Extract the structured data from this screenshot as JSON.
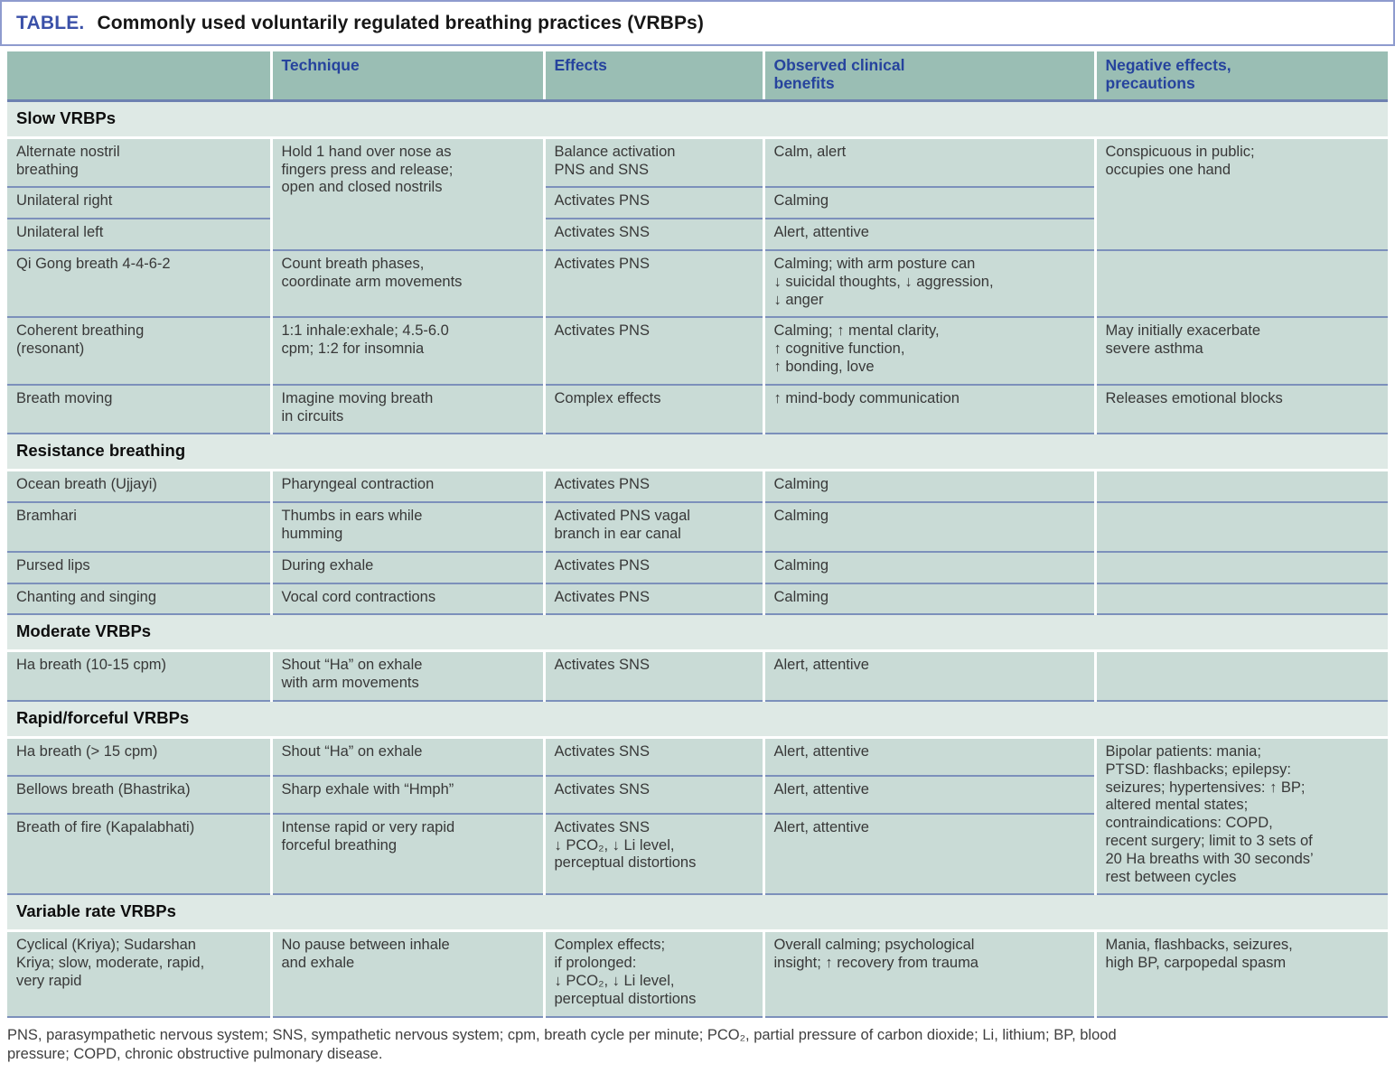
{
  "title": {
    "label": "TABLE.",
    "text": "Commonly used voluntarily regulated breathing practices (VRBPs)"
  },
  "columns": {
    "technique": "Technique",
    "effects": "Effects",
    "benefits": "Observed clinical\nbenefits",
    "negative": "Negative effects,\nprecautions"
  },
  "sections": [
    {
      "header": "Slow VRBPs",
      "rows": [
        {
          "name": "Alternate nostril\nbreathing",
          "technique": "Hold 1 hand over nose as\nfingers press and release;\nopen and closed nostrils",
          "effects": "Balance activation\nPNS and SNS",
          "benefits": "Calm, alert",
          "negative": "Conspicuous in public;\noccupies one hand"
        },
        {
          "name": "Unilateral right",
          "effects": "Activates PNS",
          "benefits": "Calming"
        },
        {
          "name": "Unilateral left",
          "effects": "Activates SNS",
          "benefits": "Alert, attentive"
        },
        {
          "name": "Qi Gong breath 4-4-6-2",
          "technique": "Count breath phases,\ncoordinate arm movements",
          "effects": "Activates PNS",
          "benefits": "Calming; with arm posture can\n↓ suicidal thoughts, ↓ aggression,\n↓ anger",
          "negative": ""
        },
        {
          "name": "Coherent breathing\n(resonant)",
          "technique": "1:1 inhale:exhale; 4.5-6.0\ncpm; 1:2 for insomnia",
          "effects": "Activates PNS",
          "benefits": "Calming; ↑ mental clarity,\n↑ cognitive function,\n↑ bonding, love",
          "negative": "May initially exacerbate\nsevere asthma"
        },
        {
          "name": "Breath moving",
          "technique": "Imagine moving breath\nin circuits",
          "effects": "Complex effects",
          "benefits": "↑ mind-body communication",
          "negative": "Releases emotional blocks"
        }
      ]
    },
    {
      "header": "Resistance breathing",
      "rows": [
        {
          "name": "Ocean breath (Ujjayi)",
          "technique": "Pharyngeal contraction",
          "effects": "Activates PNS",
          "benefits": "Calming",
          "negative": ""
        },
        {
          "name": "Bramhari",
          "technique": "Thumbs in ears while\nhumming",
          "effects": "Activated PNS vagal\nbranch in ear canal",
          "benefits": "Calming",
          "negative": ""
        },
        {
          "name": "Pursed lips",
          "technique": "During exhale",
          "effects": "Activates PNS",
          "benefits": "Calming",
          "negative": ""
        },
        {
          "name": "Chanting and singing",
          "technique": "Vocal cord contractions",
          "effects": "Activates PNS",
          "benefits": "Calming",
          "negative": ""
        }
      ]
    },
    {
      "header": "Moderate VRBPs",
      "rows": [
        {
          "name": "Ha breath (10-15 cpm)",
          "technique": "Shout “Ha” on exhale\nwith arm movements",
          "effects": "Activates SNS",
          "benefits": "Alert, attentive",
          "negative": ""
        }
      ]
    },
    {
      "header": "Rapid/forceful VRBPs",
      "rows": [
        {
          "name": "Ha breath (> 15 cpm)",
          "technique": "Shout “Ha” on exhale",
          "effects": "Activates SNS",
          "benefits": "Alert, attentive",
          "negative": "Bipolar patients: mania;\nPTSD: flashbacks; epilepsy:\nseizures; hypertensives: ↑ BP;\naltered mental states;\ncontraindications: COPD,\nrecent surgery; limit to 3 sets of\n20 Ha breaths with 30 seconds’\nrest between cycles"
        },
        {
          "name": "Bellows breath (Bhastrika)",
          "technique": "Sharp exhale with “Hmph”",
          "effects": "Activates SNS",
          "benefits": "Alert, attentive"
        },
        {
          "name": "Breath of fire (Kapalabhati)",
          "technique": "Intense rapid or very rapid\nforceful breathing",
          "effects": "Activates SNS\n↓ PCO₂, ↓ Li level,\nperceptual distortions",
          "benefits": "Alert, attentive"
        }
      ]
    },
    {
      "header": "Variable rate VRBPs",
      "rows": [
        {
          "name": "Cyclical (Kriya); Sudarshan\nKriya; slow, moderate, rapid,\nvery rapid",
          "technique": "No pause between inhale\nand exhale",
          "effects": "Complex effects;\nif prolonged:\n↓ PCO₂, ↓ Li level,\nperceptual distortions",
          "benefits": "Overall calming; psychological\ninsight; ↑ recovery from trauma",
          "negative": "Mania, flashbacks, seizures,\nhigh BP, carpopedal spasm"
        }
      ]
    }
  ],
  "footnote": "PNS, parasympathetic nervous system; SNS, sympathetic nervous system; cpm, breath cycle per minute; PCO₂, partial pressure of carbon dioxide; Li, lithium; BP, blood\npressure; COPD, chronic obstructive pulmonary disease.",
  "colors": {
    "header_bg": "#9abeb4",
    "section_bg": "#dee9e5",
    "row_bg": "#c9dbd6",
    "divider_line": "#7c90bb",
    "header_text": "#26439d",
    "title_label": "#3a50a8",
    "body_text": "#383838"
  }
}
